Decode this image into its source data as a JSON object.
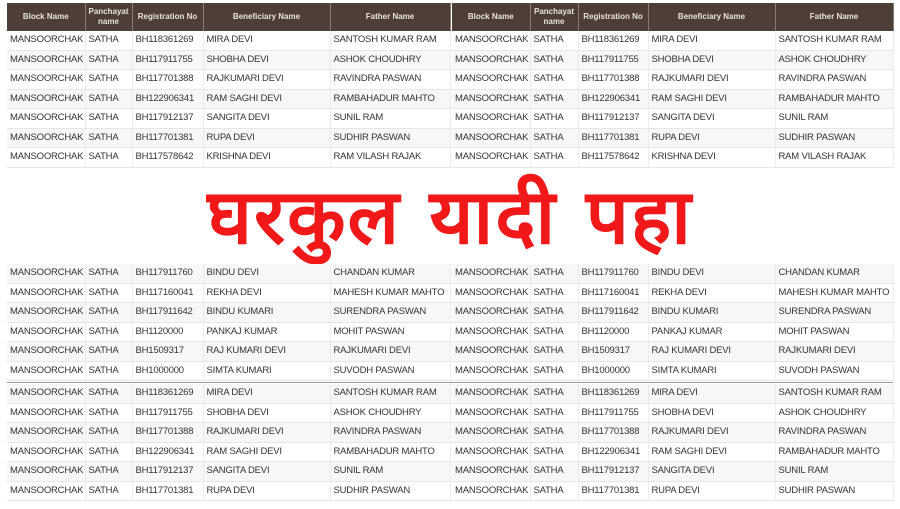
{
  "headers": [
    "Block Name",
    "Panchayat name",
    "Registration No",
    "Beneficiary Name",
    "Father Name"
  ],
  "top_rows": [
    [
      "MANSOORCHAK",
      "SATHA",
      "BH118361269",
      "MIRA DEVI",
      "SANTOSH KUMAR RAM"
    ],
    [
      "MANSOORCHAK",
      "SATHA",
      "BH117911755",
      "SHOBHA DEVI",
      "ASHOK CHOUDHRY"
    ],
    [
      "MANSOORCHAK",
      "SATHA",
      "BH117701388",
      "RAJKUMARI DEVI",
      "RAVINDRA PASWAN"
    ],
    [
      "MANSOORCHAK",
      "SATHA",
      "BH122906341",
      "RAM SAGHI DEVI",
      "RAMBAHADUR MAHTO"
    ],
    [
      "MANSOORCHAK",
      "SATHA",
      "BH117912137",
      "SANGITA DEVI",
      "SUNIL RAM"
    ],
    [
      "MANSOORCHAK",
      "SATHA",
      "BH117701381",
      "RUPA DEVI",
      "SUDHIR PASWAN"
    ],
    [
      "MANSOORCHAK",
      "SATHA",
      "BH117578642",
      "KRISHNA DEVI",
      "RAM VILASH RAJAK"
    ],
    [
      "MANSOORCHAK",
      "SATHA",
      "BH117911760",
      "BINDU DEVI",
      "CHANDAN KUMAR"
    ],
    [
      "MANSOORCHAK",
      "SATHA",
      "BH117160041",
      "REKHA DEVI",
      "MAHESH KUMAR MAHTO"
    ],
    [
      "MANSOORCHAK",
      "SATHA",
      "BH117911642",
      "BINDU KUMARI",
      "SURENDRA PASWAN"
    ],
    [
      "MANSOORCHAK",
      "SATHA",
      "BH1120000",
      "PANKAJ KUMAR",
      "MOHIT PASWAN"
    ],
    [
      "MANSOORCHAK",
      "SATHA",
      "BH1509317",
      "RAJ KUMARI DEVI",
      "RAJKUMARI DEVI"
    ],
    [
      "MANSOORCHAK",
      "SATHA",
      "BH1000000",
      "SIMTA KUMARI",
      "SUVODH PASWAN"
    ]
  ],
  "bottom_rows": [
    [
      "MANSOORCHAK",
      "SATHA",
      "BH118361269",
      "MIRA DEVI",
      "SANTOSH KUMAR RAM"
    ],
    [
      "MANSOORCHAK",
      "SATHA",
      "BH117911755",
      "SHOBHA DEVI",
      "ASHOK CHOUDHRY"
    ],
    [
      "MANSOORCHAK",
      "SATHA",
      "BH117701388",
      "RAJKUMARI DEVI",
      "RAVINDRA PASWAN"
    ],
    [
      "MANSOORCHAK",
      "SATHA",
      "BH122906341",
      "RAM SAGHI DEVI",
      "RAMBAHADUR MAHTO"
    ],
    [
      "MANSOORCHAK",
      "SATHA",
      "BH117912137",
      "SANGITA DEVI",
      "SUNIL RAM"
    ],
    [
      "MANSOORCHAK",
      "SATHA",
      "BH117701381",
      "RUPA DEVI",
      "SUDHIR PASWAN"
    ]
  ],
  "overlay_title": "घरकुल यादी पहा",
  "colors": {
    "header_bg": "#4d3e37",
    "overlay": "#f01818"
  }
}
